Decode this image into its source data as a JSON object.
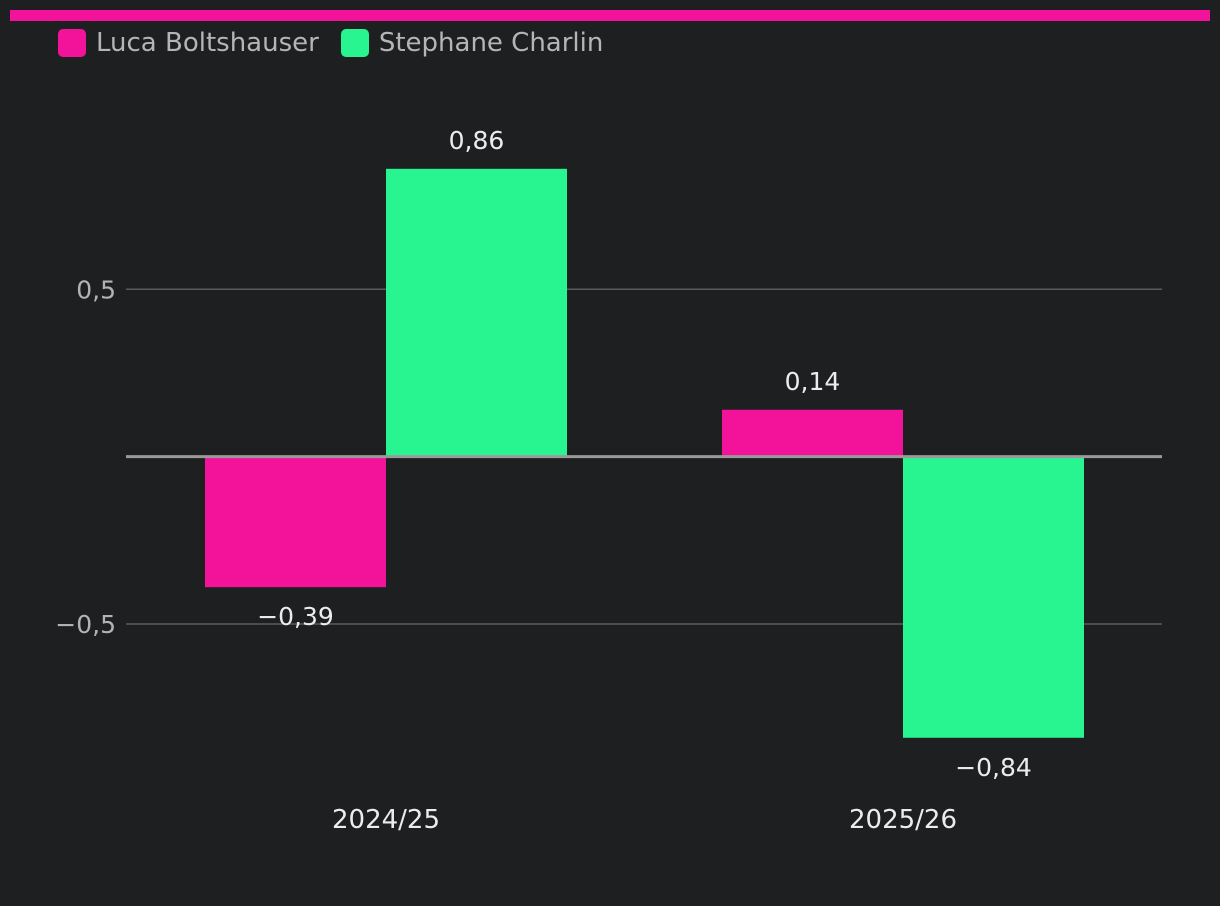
{
  "colors": {
    "background": "#1e1f21",
    "accent": "#f2139a",
    "grid": "#5a5b5d",
    "zero_line": "#9a9a9a",
    "tick_text": "#b3b3b3",
    "label_text": "#ececec"
  },
  "legend": {
    "placement": "top-left",
    "items": [
      {
        "label": "Luca Boltshauser",
        "color": "#f2139a"
      },
      {
        "label": "Stephane Charlin",
        "color": "#28f590"
      }
    ]
  },
  "chart_data": {
    "type": "bar",
    "title": "",
    "xlabel": "",
    "ylabel": "",
    "categories": [
      "2024/25",
      "2025/26"
    ],
    "series": [
      {
        "name": "Luca Boltshauser",
        "color": "#f2139a",
        "values": [
          -0.39,
          0.14
        ],
        "labels": [
          "−0,39",
          "0,14"
        ]
      },
      {
        "name": "Stephane Charlin",
        "color": "#28f590",
        "values": [
          0.86,
          -0.84
        ],
        "labels": [
          "0,86",
          "−0,84"
        ]
      }
    ],
    "yticks": [
      {
        "value": 0.5,
        "label": "0,5"
      },
      {
        "value": -0.5,
        "label": "−0,5"
      }
    ],
    "ylim": [
      -0.99,
      1.2
    ],
    "grid": true,
    "zero_line": true
  }
}
